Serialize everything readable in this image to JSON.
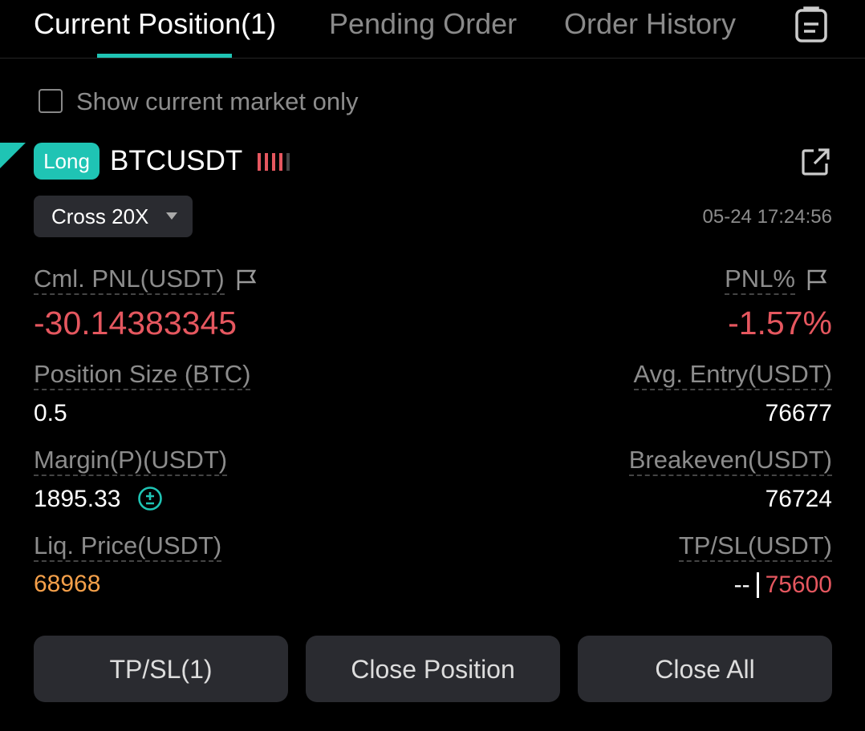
{
  "tabs": [
    "Current Position(1)",
    "Pending Order",
    "Order History"
  ],
  "filter": {
    "label": "Show current market only"
  },
  "position": {
    "side": "Long",
    "symbol": "BTCUSDT",
    "margin_mode": "Cross 20X",
    "time": "05-24 17:24:56",
    "cml_pnl": {
      "label": "Cml. PNL(USDT)",
      "value": "-30.14383345"
    },
    "pnl_pct": {
      "label": "PNL%",
      "value": "-1.57%"
    },
    "size": {
      "label": "Position Size (BTC)",
      "value": "0.5"
    },
    "avg_entry": {
      "label": "Avg. Entry(USDT)",
      "value": "76677"
    },
    "margin": {
      "label": "Margin(P)(USDT)",
      "value": "1895.33"
    },
    "breakeven": {
      "label": "Breakeven(USDT)",
      "value": "76724"
    },
    "liq_price": {
      "label": "Liq. Price(USDT)",
      "value": "68968"
    },
    "tpsl": {
      "label": "TP/SL(USDT)",
      "tp": "--",
      "sl": "75600"
    }
  },
  "buttons": [
    "TP/SL(1)",
    "Close Position",
    "Close All"
  ]
}
